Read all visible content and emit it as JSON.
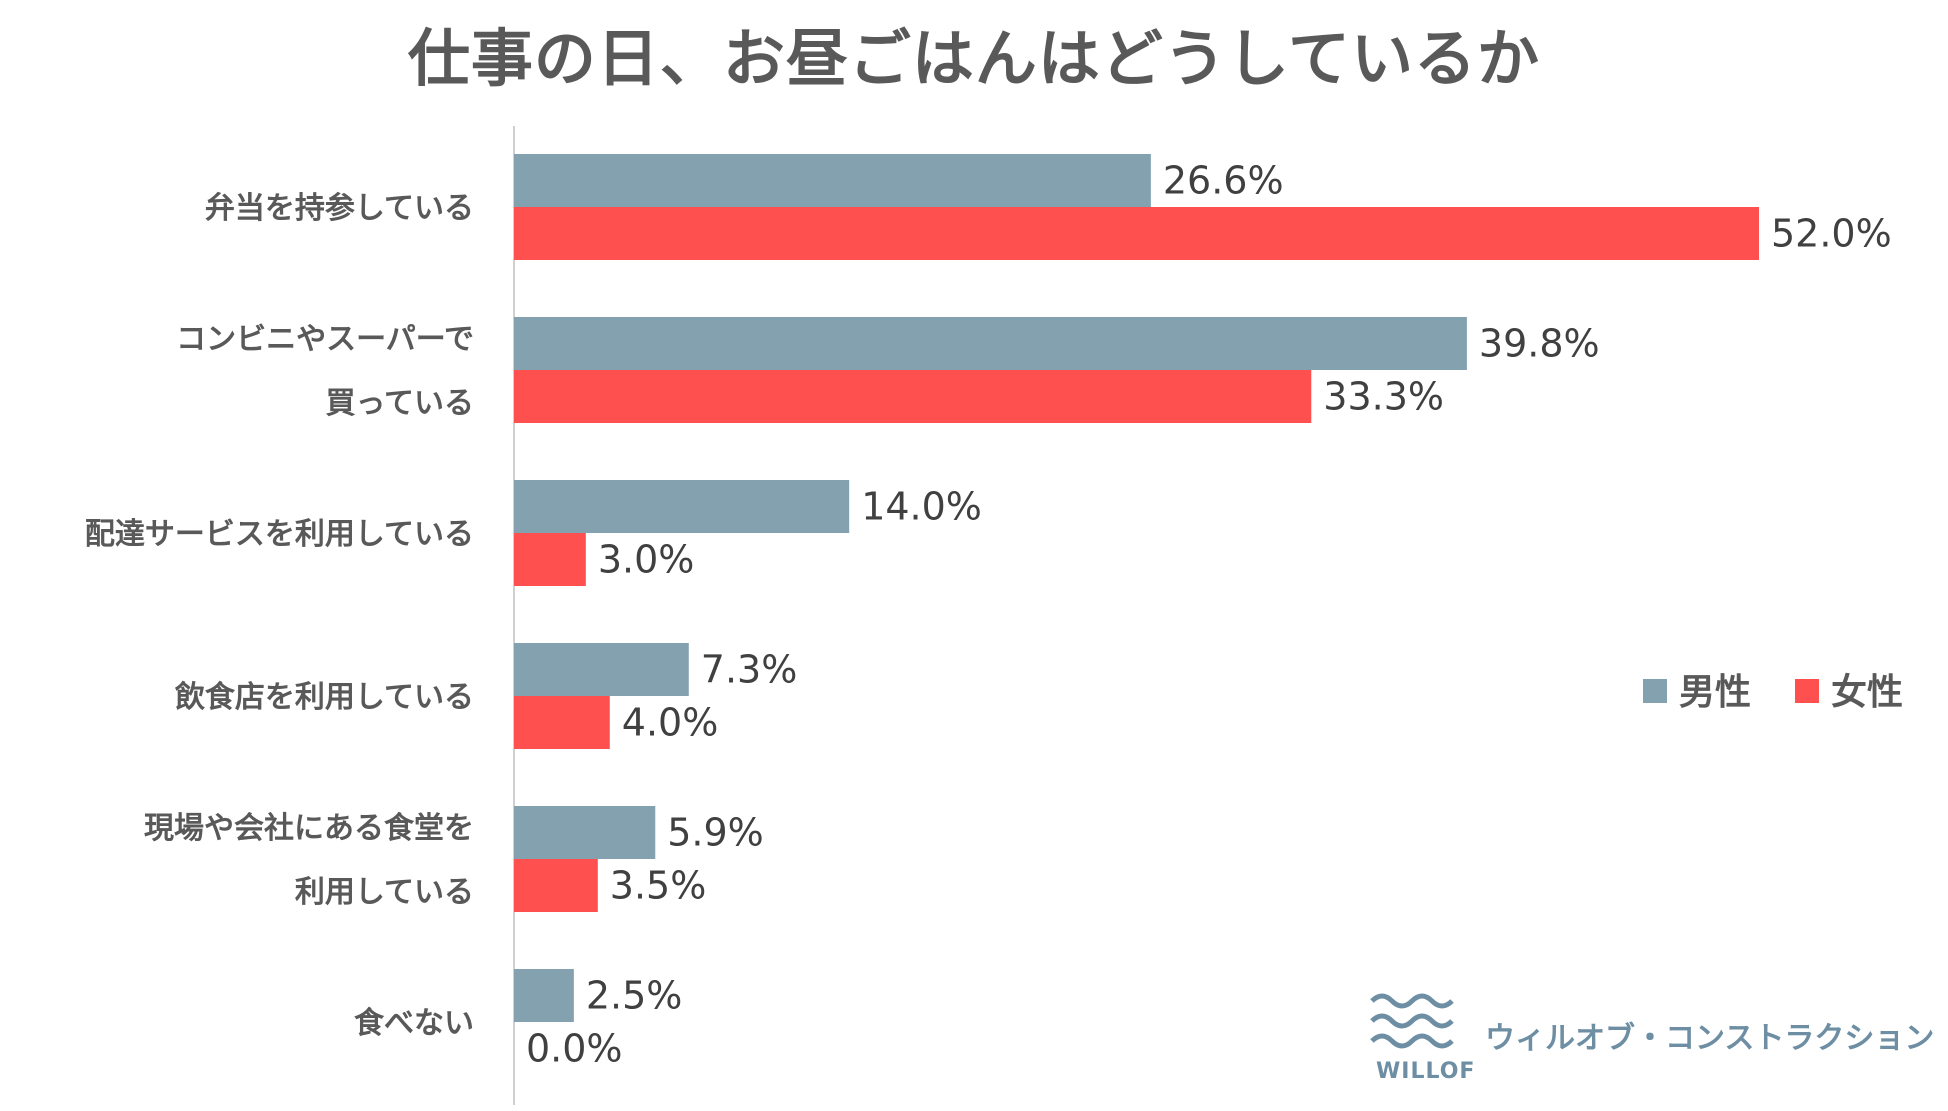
{
  "chart_data": {
    "type": "bar",
    "orientation": "horizontal",
    "title": "仕事の日、お昼ごはんはどうしているか",
    "categories": [
      [
        "弁当を持参している"
      ],
      [
        "コンビニやスーパーで",
        "買っている"
      ],
      [
        "配達サービスを利用している"
      ],
      [
        "飲食店を利用している"
      ],
      [
        "現場や会社にある食堂を",
        "利用している"
      ],
      [
        "食べない"
      ]
    ],
    "series": [
      {
        "name": "男性",
        "color": "#84a1b0",
        "values": [
          26.6,
          39.8,
          14.0,
          7.3,
          5.9,
          2.5
        ],
        "labels": [
          "26.6%",
          "39.8%",
          "14.0%",
          "7.3%",
          "5.9%",
          "2.5%"
        ]
      },
      {
        "name": "女性",
        "color": "#ff5050",
        "values": [
          52.0,
          33.3,
          3.0,
          4.0,
          3.5,
          0.0
        ],
        "labels": [
          "52.0%",
          "33.3%",
          "3.0%",
          "4.0%",
          "3.5%",
          "0.0%"
        ]
      }
    ],
    "xlim": [
      0,
      52
    ],
    "grid": false,
    "legend_position": "right"
  },
  "brand": {
    "name": "ウィルオブ・コンストラクション",
    "wordmark": "WILLOF",
    "logo_icon": "wave-icon",
    "color": "#6d8ea3"
  }
}
